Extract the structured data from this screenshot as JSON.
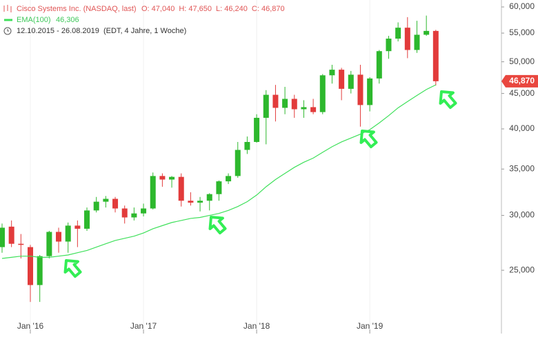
{
  "chart_data": {
    "type": "candlestick",
    "title": "Cisco Systems Inc. (NASDAQ, last)",
    "ohlc_header": [
      "O: 47,040",
      "H: 47,650",
      "L: 46,240",
      "C: 46,870"
    ],
    "period": "12.10.2015 - 26.08.2019",
    "period_note": "(EDT, 4 Jahre, 1 Woche)",
    "categories": [
      null,
      null,
      null,
      "Jan '16",
      null,
      null,
      null,
      null,
      null,
      null,
      null,
      null,
      null,
      null,
      null,
      "Jan '17",
      null,
      null,
      null,
      null,
      null,
      null,
      null,
      null,
      null,
      null,
      null,
      "Jan '18",
      null,
      null,
      null,
      null,
      null,
      null,
      null,
      null,
      null,
      null,
      null,
      "Jan '19",
      null,
      null,
      null,
      null,
      null,
      null,
      null
    ],
    "open": [
      27000,
      28900,
      27300,
      27000,
      23800,
      26200,
      28400,
      27500,
      29000,
      28700,
      30500,
      31400,
      31700,
      30700,
      29800,
      30200,
      30700,
      34200,
      33800,
      34100,
      31500,
      31300,
      31500,
      32200,
      33600,
      34200,
      37300,
      38300,
      41500,
      44800,
      42900,
      44200,
      42700,
      43000,
      42300,
      47800,
      48700,
      45700,
      47900,
      43300,
      47300,
      51800,
      54000,
      56000,
      52000,
      54700,
      55400
    ],
    "high": [
      29200,
      29500,
      28200,
      27200,
      26300,
      28500,
      28800,
      29300,
      29500,
      30800,
      31900,
      32000,
      31900,
      31000,
      30800,
      31200,
      34600,
      34500,
      34200,
      34500,
      32400,
      31900,
      32300,
      33700,
      34500,
      38300,
      39000,
      42000,
      45500,
      46300,
      46000,
      44800,
      44000,
      44200,
      48000,
      49500,
      49000,
      48500,
      49500,
      47500,
      52000,
      54500,
      57000,
      58000,
      57300,
      58300,
      55600
    ],
    "low": [
      26500,
      27000,
      26000,
      22500,
      22500,
      26000,
      26500,
      26500,
      27000,
      28500,
      30300,
      30800,
      30300,
      29200,
      29500,
      29900,
      30600,
      33000,
      32900,
      30900,
      31000,
      30400,
      30500,
      31500,
      33300,
      34000,
      36800,
      38200,
      38000,
      41000,
      42000,
      41500,
      41500,
      42000,
      42000,
      46500,
      44000,
      45000,
      40300,
      42400,
      46500,
      50500,
      53500,
      50600,
      51500,
      54500,
      46200
    ],
    "close": [
      28800,
      27300,
      27200,
      23800,
      26200,
      28400,
      27500,
      29000,
      28700,
      30500,
      31400,
      31700,
      30700,
      29800,
      30200,
      30700,
      34200,
      33800,
      34100,
      31500,
      31300,
      31500,
      32200,
      33600,
      34200,
      37300,
      38300,
      41500,
      44800,
      42900,
      44200,
      42700,
      43000,
      42300,
      47800,
      48700,
      45700,
      47900,
      43300,
      47300,
      51800,
      54000,
      56000,
      52000,
      54700,
      55400,
      46870
    ],
    "up_color": "#2db82d",
    "down_color": "#e23b3b",
    "ema": {
      "name": "EMA(100)",
      "value_label": "46,306",
      "color": "#3ee05a",
      "values": [
        26000,
        26100,
        26200,
        26200,
        26100,
        26100,
        26200,
        26300,
        26500,
        26700,
        27000,
        27300,
        27600,
        27800,
        28000,
        28300,
        28700,
        29000,
        29300,
        29500,
        29700,
        29800,
        30000,
        30200,
        30500,
        30900,
        31400,
        32100,
        33000,
        33800,
        34500,
        35200,
        35800,
        36300,
        37000,
        37700,
        38300,
        38800,
        39300,
        39900,
        40800,
        41800,
        42900,
        43800,
        44700,
        45600,
        46306
      ]
    },
    "last_price": {
      "value": 46870,
      "label": "46,870",
      "color": "#e9473f"
    },
    "log_scale": true,
    "ylim": [
      21400,
      61400
    ],
    "yticks": [
      {
        "value": 25000,
        "label": "25,000"
      },
      {
        "value": 30000,
        "label": "30,000"
      },
      {
        "value": 35000,
        "label": "35,000"
      },
      {
        "value": 40000,
        "label": "40,000"
      },
      {
        "value": 45000,
        "label": "45,000"
      },
      {
        "value": 50000,
        "label": "50,000"
      },
      {
        "value": 55000,
        "label": "55,000"
      },
      {
        "value": 60000,
        "label": "60,000"
      }
    ]
  }
}
